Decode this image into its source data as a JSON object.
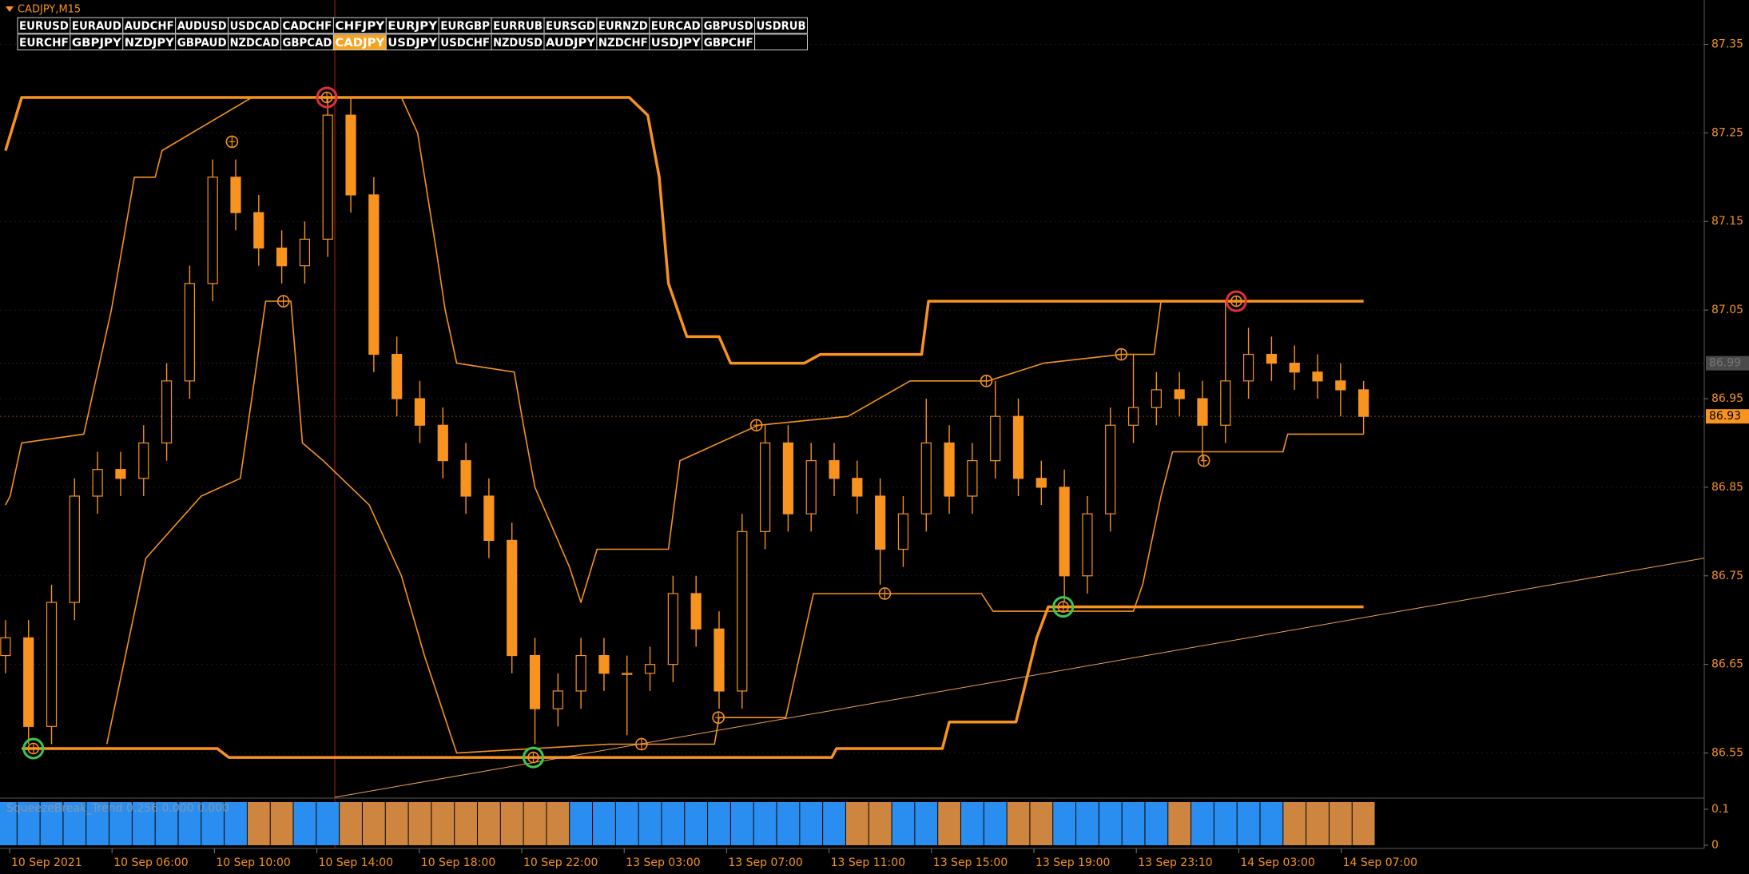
{
  "chart_data": {
    "type": "candlestick",
    "title": "CADJPY,M15",
    "symbols": [
      [
        "EURUSD",
        "EURAUD",
        "AUDCHF",
        "AUDUSD",
        "USDCAD",
        "CADCHF",
        "CHFJPY",
        "EURJPY",
        "EURGBP",
        "EURRUB",
        "EURSGD",
        "EURNZD",
        "EURCAD",
        "GBPUSD",
        "USDRUB"
      ],
      [
        "EURCHF",
        "GBPJPY",
        "NZDJPY",
        "GBPAUD",
        "NZDCAD",
        "GBPCAD",
        "CADJPY",
        "USDJPY",
        "USDCHF",
        "NZDUSD",
        "AUDJPY",
        "NZDCHF",
        "USDJPY",
        "GBPCHF"
      ]
    ],
    "active": [
      1,
      6
    ],
    "xlabels": [
      "10 Sep 2021",
      "10 Sep 06:00",
      "10 Sep 10:00",
      "10 Sep 14:00",
      "10 Sep 18:00",
      "10 Sep 22:00",
      "13 Sep 03:00",
      "13 Sep 07:00",
      "13 Sep 11:00",
      "13 Sep 15:00",
      "13 Sep 19:00",
      "13 Sep 23:10",
      "14 Sep 03:00",
      "14 Sep 07:00"
    ],
    "xlim": [
      -0.24,
      73.8
    ],
    "ylim": [
      86.5,
      87.4
    ],
    "yticks": [
      86.55,
      86.65,
      86.75,
      86.85,
      86.95,
      87.05,
      87.15,
      87.25,
      87.35
    ],
    "grid": true,
    "candle_color": "#f7931e",
    "candles": [
      [
        86.66,
        86.7,
        86.64,
        86.68
      ],
      [
        86.68,
        86.7,
        86.56,
        86.58
      ],
      [
        86.58,
        86.74,
        86.56,
        86.72
      ],
      [
        86.72,
        86.86,
        86.7,
        86.84
      ],
      [
        86.84,
        86.89,
        86.82,
        86.87
      ],
      [
        86.87,
        86.89,
        86.84,
        86.86
      ],
      [
        86.86,
        86.92,
        86.84,
        86.9
      ],
      [
        86.9,
        86.99,
        86.88,
        86.97
      ],
      [
        86.97,
        87.1,
        86.95,
        87.08
      ],
      [
        87.08,
        87.22,
        87.06,
        87.2
      ],
      [
        87.2,
        87.22,
        87.14,
        87.16
      ],
      [
        87.16,
        87.18,
        87.1,
        87.12
      ],
      [
        87.12,
        87.14,
        87.08,
        87.1
      ],
      [
        87.1,
        87.15,
        87.08,
        87.13
      ],
      [
        87.13,
        87.29,
        87.11,
        87.27
      ],
      [
        87.27,
        87.29,
        87.16,
        87.18
      ],
      [
        87.18,
        87.2,
        86.98,
        87.0
      ],
      [
        87.0,
        87.02,
        86.93,
        86.95
      ],
      [
        86.95,
        86.97,
        86.9,
        86.92
      ],
      [
        86.92,
        86.94,
        86.86,
        86.88
      ],
      [
        86.88,
        86.9,
        86.82,
        86.84
      ],
      [
        86.84,
        86.86,
        86.77,
        86.79
      ],
      [
        86.79,
        86.81,
        86.64,
        86.66
      ],
      [
        86.66,
        86.68,
        86.56,
        86.6
      ],
      [
        86.6,
        86.64,
        86.58,
        86.62
      ],
      [
        86.62,
        86.68,
        86.6,
        86.66
      ],
      [
        86.66,
        86.68,
        86.62,
        86.64
      ],
      [
        86.64,
        86.66,
        86.57,
        86.64
      ],
      [
        86.64,
        86.67,
        86.62,
        86.65
      ],
      [
        86.65,
        86.75,
        86.63,
        86.73
      ],
      [
        86.73,
        86.75,
        86.67,
        86.69
      ],
      [
        86.69,
        86.71,
        86.6,
        86.62
      ],
      [
        86.62,
        86.82,
        86.6,
        86.8
      ],
      [
        86.8,
        86.92,
        86.78,
        86.9
      ],
      [
        86.9,
        86.92,
        86.8,
        86.82
      ],
      [
        86.82,
        86.9,
        86.8,
        86.88
      ],
      [
        86.88,
        86.9,
        86.84,
        86.86
      ],
      [
        86.86,
        86.88,
        86.82,
        86.84
      ],
      [
        86.84,
        86.86,
        86.74,
        86.78
      ],
      [
        86.78,
        86.84,
        86.76,
        86.82
      ],
      [
        86.82,
        86.95,
        86.8,
        86.9
      ],
      [
        86.9,
        86.92,
        86.82,
        86.84
      ],
      [
        86.84,
        86.9,
        86.82,
        86.88
      ],
      [
        86.88,
        86.97,
        86.86,
        86.93
      ],
      [
        86.93,
        86.95,
        86.84,
        86.86
      ],
      [
        86.86,
        86.88,
        86.83,
        86.85
      ],
      [
        86.85,
        86.87,
        86.72,
        86.75
      ],
      [
        86.75,
        86.84,
        86.73,
        86.82
      ],
      [
        86.82,
        86.94,
        86.8,
        86.92
      ],
      [
        86.92,
        87.0,
        86.9,
        86.94
      ],
      [
        86.94,
        86.98,
        86.92,
        86.96
      ],
      [
        86.96,
        86.98,
        86.93,
        86.95
      ],
      [
        86.95,
        86.97,
        86.88,
        86.92
      ],
      [
        86.92,
        87.06,
        86.9,
        86.97
      ],
      [
        86.97,
        87.03,
        86.95,
        87.0
      ],
      [
        87.0,
        87.02,
        86.97,
        86.99
      ],
      [
        86.99,
        87.01,
        86.96,
        86.98
      ],
      [
        86.98,
        87.0,
        86.95,
        86.97
      ],
      [
        86.97,
        86.99,
        86.93,
        86.96
      ],
      [
        86.96,
        86.97,
        86.91,
        86.93
      ]
    ],
    "lines": [
      {
        "color": "#f7931e",
        "width": 3.5,
        "x": [
          0,
          0.7,
          27.1,
          27.9,
          28.4,
          28.8,
          29.6,
          31,
          31.5,
          34.7,
          35.4,
          39.8,
          40.1,
          59
        ],
        "values": [
          87.23,
          87.29,
          87.29,
          87.27,
          87.2,
          87.08,
          87.02,
          87.02,
          86.99,
          86.99,
          87.0,
          87.0,
          87.06,
          87.06
        ]
      },
      {
        "color": "#f7931e",
        "width": 3.5,
        "x": [
          0.7,
          9.2,
          9.7,
          35.9,
          36.1,
          40.7,
          41,
          43.9,
          44.8,
          45.3,
          59
        ],
        "values": [
          86.555,
          86.555,
          86.545,
          86.545,
          86.555,
          86.555,
          86.585,
          86.585,
          86.68,
          86.715,
          86.715
        ]
      },
      {
        "color": "#f7931e",
        "width": 1.6,
        "x": [
          0,
          0.2,
          0.7,
          3.4,
          4.6,
          5.6,
          6.5,
          6.8,
          10.7,
          17.2,
          17.9,
          18.7,
          19.1,
          19.6,
          22.1,
          22.5,
          23,
          24.5,
          25,
          25.7,
          28.8,
          29.3,
          32.7,
          36.6,
          39.3,
          42.7,
          45.1,
          48.5,
          49.9,
          50.2,
          59
        ],
        "values": [
          86.83,
          86.84,
          86.9,
          86.91,
          87.05,
          87.2,
          87.2,
          87.23,
          87.29,
          87.29,
          87.25,
          87.12,
          87.05,
          86.99,
          86.98,
          86.92,
          86.85,
          86.76,
          86.72,
          86.78,
          86.78,
          86.88,
          86.92,
          86.93,
          86.97,
          86.97,
          86.99,
          87.0,
          87.0,
          87.06,
          87.06
        ]
      },
      {
        "color": "#f7931e",
        "width": 1.6,
        "x": [
          4.4,
          6.1,
          8.5,
          10.2,
          11.3,
          12.4,
          12.9,
          13.8,
          15.8,
          17.2,
          18.2,
          19.6,
          26.2,
          30.8,
          31,
          33.9,
          35.1,
          42.4,
          42.9,
          49,
          49.4,
          50.2,
          50.7,
          55.5,
          55.7,
          59
        ],
        "values": [
          86.56,
          86.77,
          86.84,
          86.86,
          87.06,
          87.06,
          86.9,
          86.88,
          86.83,
          86.75,
          86.66,
          86.55,
          86.56,
          86.56,
          86.59,
          86.59,
          86.73,
          86.73,
          86.71,
          86.71,
          86.74,
          86.84,
          86.89,
          86.89,
          86.91,
          86.91
        ]
      },
      {
        "color": "#f0a050",
        "width": 1,
        "x": [
          14.3,
          73.8
        ],
        "values": [
          86.5,
          86.77
        ]
      }
    ],
    "markers": [
      {
        "x": 13.96,
        "value": 87.29,
        "color": "#e0303a",
        "size": 2
      },
      {
        "x": 53.47,
        "value": 87.06,
        "color": "#e0303a",
        "size": 2
      },
      {
        "x": 1.21,
        "value": 86.555,
        "color": "#3cc850",
        "size": 2
      },
      {
        "x": 22.93,
        "value": 86.545,
        "color": "#3cc850",
        "size": 2
      },
      {
        "x": 45.95,
        "value": 86.715,
        "color": "#3cc850",
        "size": 2
      },
      {
        "x": 9.84,
        "value": 87.24,
        "color": "#f7931e",
        "size": 1
      },
      {
        "x": 12.07,
        "value": 87.06,
        "color": "#f7931e",
        "size": 1
      },
      {
        "x": 27.63,
        "value": 86.56,
        "color": "#f7931e",
        "size": 1
      },
      {
        "x": 30.97,
        "value": 86.59,
        "color": "#f7931e",
        "size": 1
      },
      {
        "x": 32.62,
        "value": 86.92,
        "color": "#f7931e",
        "size": 1
      },
      {
        "x": 38.2,
        "value": 86.73,
        "color": "#f7931e",
        "size": 1
      },
      {
        "x": 42.61,
        "value": 86.97,
        "color": "#f7931e",
        "size": 1
      },
      {
        "x": 48.47,
        "value": 87.0,
        "color": "#f7931e",
        "size": 1
      },
      {
        "x": 52.06,
        "value": 86.88,
        "color": "#f7931e",
        "size": 1
      }
    ],
    "price_lines": [
      {
        "value": 86.99,
        "color": "#4a4a4a"
      },
      {
        "value": 86.93,
        "color": "#f7931e"
      }
    ],
    "indicator": {
      "name": "SqueezeBreak_Trend 0.256 0.000 0.000",
      "ylim": [
        0,
        0.13
      ],
      "yticks": [
        0,
        0.1
      ],
      "level": 0.12,
      "colors": [
        "#2a8ef0",
        "#2a8ef0",
        "#2a8ef0",
        "#2a8ef0",
        "#2a8ef0",
        "#2a8ef0",
        "#2a8ef0",
        "#2a8ef0",
        "#2a8ef0",
        "#2a8ef0",
        "#2a8ef0",
        "#cd853f",
        "#cd853f",
        "#2a8ef0",
        "#2a8ef0",
        "#cd853f",
        "#cd853f",
        "#cd853f",
        "#cd853f",
        "#cd853f",
        "#cd853f",
        "#cd853f",
        "#cd853f",
        "#cd853f",
        "#cd853f",
        "#2a8ef0",
        "#2a8ef0",
        "#2a8ef0",
        "#2a8ef0",
        "#2a8ef0",
        "#2a8ef0",
        "#2a8ef0",
        "#2a8ef0",
        "#2a8ef0",
        "#2a8ef0",
        "#2a8ef0",
        "#2a8ef0",
        "#cd853f",
        "#cd853f",
        "#2a8ef0",
        "#2a8ef0",
        "#cd853f",
        "#2a8ef0",
        "#2a8ef0",
        "#cd853f",
        "#cd853f",
        "#2a8ef0",
        "#2a8ef0",
        "#2a8ef0",
        "#2a8ef0",
        "#2a8ef0",
        "#cd853f",
        "#2a8ef0",
        "#2a8ef0",
        "#2a8ef0",
        "#2a8ef0",
        "#cd853f",
        "#cd853f",
        "#cd853f",
        "#cd853f"
      ]
    }
  }
}
